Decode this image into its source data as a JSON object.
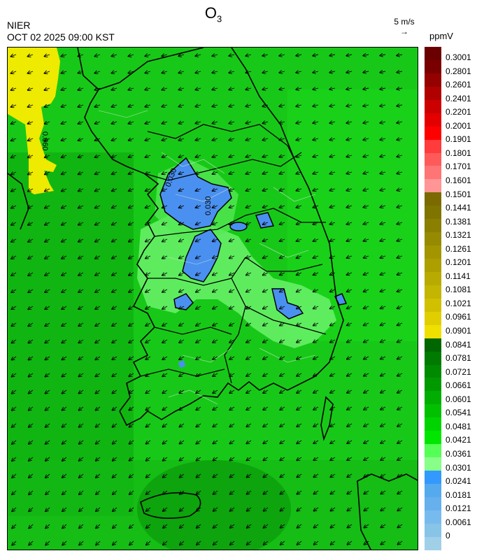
{
  "header": {
    "title_main": "O",
    "title_sub": "3",
    "org": "NIER",
    "timestamp": "OCT 02 2025 09:00 KST",
    "wind_ref_label": "5 m/s",
    "wind_ref_arrow": "→",
    "unit": "ppmV"
  },
  "contour_labels": [
    "0.060",
    "0.030",
    "0.030"
  ],
  "legend": {
    "colors": [
      "#6a0000",
      "#7a0000",
      "#950000",
      "#b00000",
      "#cc0000",
      "#e40000",
      "#ff0000",
      "#ff3b3b",
      "#ff5a5a",
      "#ff7474",
      "#ff9595",
      "#7a6a00",
      "#7f7400",
      "#8a7f00",
      "#958a00",
      "#a29500",
      "#ad9f00",
      "#b8aa00",
      "#c4b500",
      "#d1c000",
      "#e0ce00",
      "#f0e000",
      "#006600",
      "#007a00",
      "#008a00",
      "#009a00",
      "#00ad00",
      "#00c000",
      "#00d400",
      "#00e600",
      "#55ff55",
      "#88ff88",
      "#3399ff",
      "#55aaee",
      "#66b0ee",
      "#77bbee",
      "#88c4e8",
      "#a0d0e8"
    ],
    "ticks": [
      "0.3001",
      "0.2801",
      "0.2601",
      "0.2401",
      "0.2201",
      "0.2001",
      "0.1901",
      "0.1801",
      "0.1701",
      "0.1601",
      "0.1501",
      "0.1441",
      "0.1381",
      "0.1321",
      "0.1261",
      "0.1201",
      "0.1141",
      "0.1081",
      "0.1021",
      "0.0961",
      "0.0901",
      "0.0841",
      "0.0781",
      "0.0721",
      "0.0661",
      "0.0601",
      "0.0541",
      "0.0481",
      "0.0421",
      "0.0361",
      "0.0301",
      "0.0241",
      "0.0181",
      "0.0121",
      "0.0061",
      "0"
    ]
  }
}
